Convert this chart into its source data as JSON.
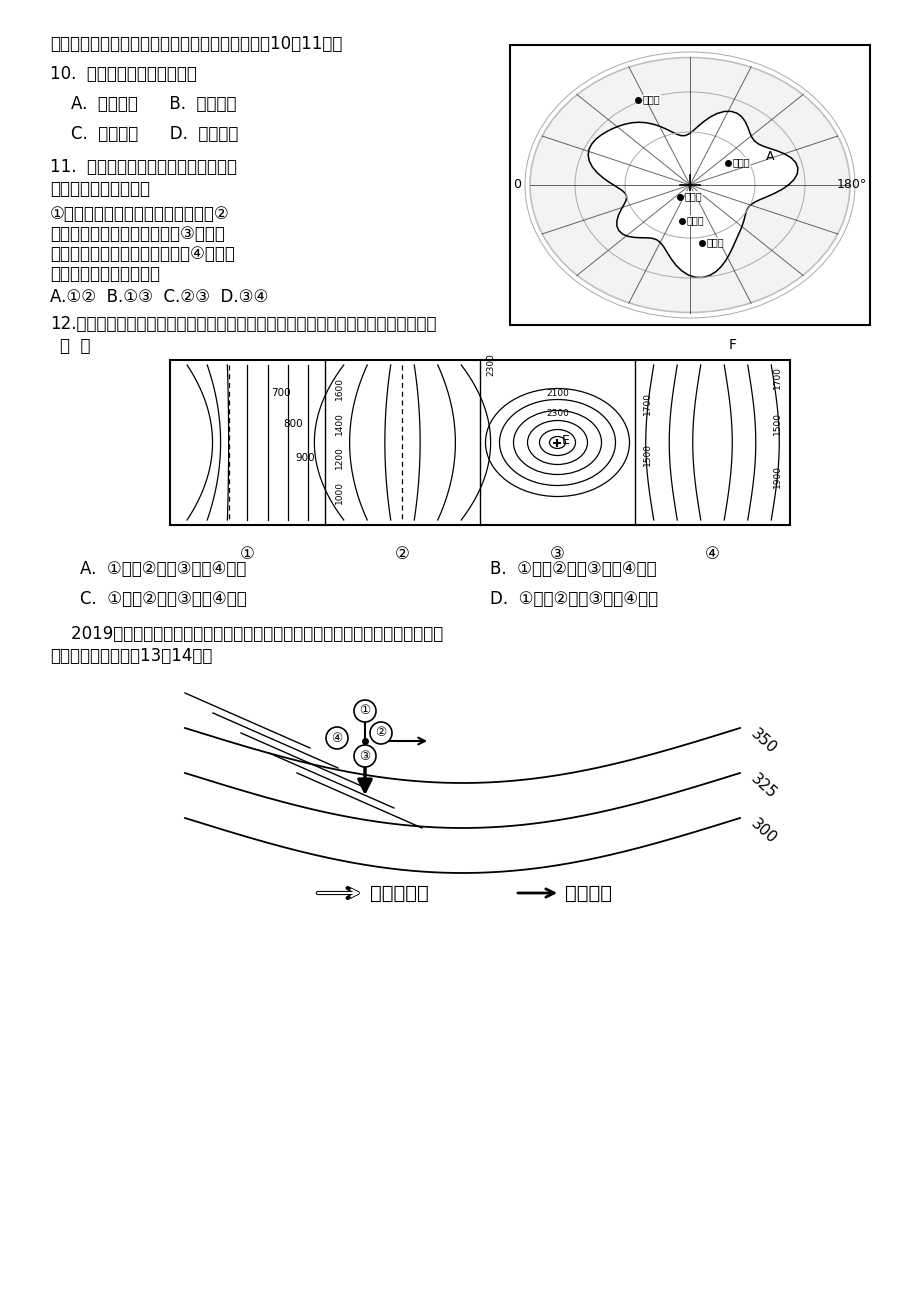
{
  "page_bg": "#ffffff",
  "text_color": "#000000",
  "intro_text": "下图为我国南极科考站位置简图，读图文材料完成10～11题。",
  "q10_text": "10.  罗斯海新站位于长城站的",
  "q10_a": "    A.  东北方向      B.  东南方向",
  "q10_b": "    C.  西北方向      D.  西南方向",
  "q11_line1": "11.  位于南极冰盖之巅的昆仑站最适合",
  "q11_line2": "天文观测，主要原因是",
  "q11_body1": "①海拔高，空气稀薄，大气透明度高②",
  "q11_body2": "极昼期长达半年，可连续观测③人类活",
  "q11_body3": "动少，光污染和大气污染极少；④四季分",
  "q11_body4": "明，观测结果研究价值大",
  "q11_opts": "A.①②  B.①③  C.②③  D.③④",
  "q12_line1": "12.下图中虚线或字母表示地形部位。下列选项中，地形部位名称排序与图序相符的是",
  "q12_line2": "（  ）",
  "q12_a": "A.  ①山谷②山谷③山顶④鞍部",
  "q12_b": "B.  ①山谷②山脊③鞍部④山顶",
  "q12_c": "C.  ①山谷②山脊③山顶④鞍部",
  "q12_d": "D.  ①山脊②山脊③山顶④鞍部",
  "q13_line1": "    2019年某地发生重大的滑坡、泥石流等自然灾害，造成重大损失。下图是逃生线",
  "q13_line2": "路示意图，据此完成13～14题。",
  "legend_mudslide": "泥石流方向",
  "legend_escape": "逃生方向"
}
